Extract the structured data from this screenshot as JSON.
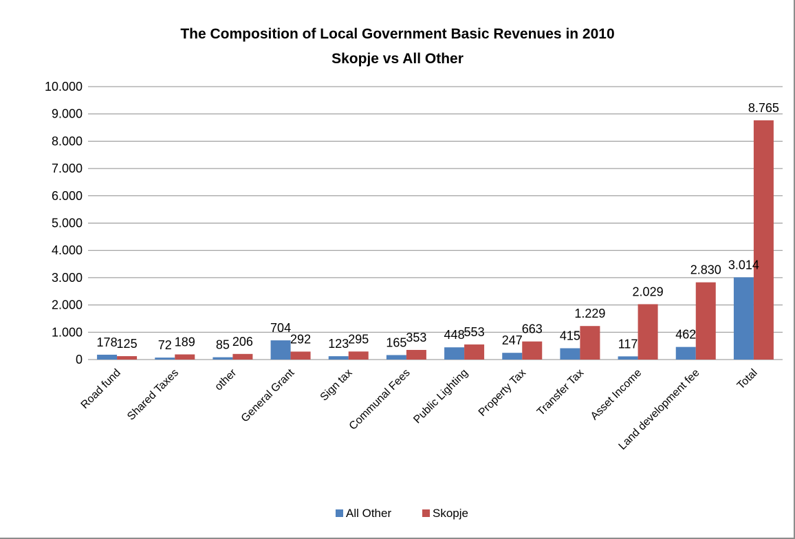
{
  "chart_data": {
    "type": "bar",
    "title": "The Composition of Local Government Basic Revenues in 2010",
    "subtitle": "Skopje vs All Other",
    "categories": [
      "Road fund",
      "Shared Taxes",
      "other",
      "General Grant",
      "Sign tax",
      "Communal Fees",
      "Public Lighting",
      "Property Tax",
      "Transfer Tax",
      "Asset Income",
      "Land development fee",
      "Total"
    ],
    "series": [
      {
        "name": "All Other",
        "color": "#4f81bd",
        "values": [
          178,
          72,
          85,
          704,
          123,
          165,
          448,
          247,
          415,
          117,
          462,
          3014
        ],
        "labels": [
          "178",
          "72",
          "85",
          "704",
          "123",
          "165",
          "448",
          "247",
          "415",
          "117",
          "462",
          "3.014"
        ]
      },
      {
        "name": "Skopje",
        "color": "#c0504d",
        "values": [
          125,
          189,
          206,
          292,
          295,
          353,
          553,
          663,
          1229,
          2029,
          2830,
          8765
        ],
        "labels": [
          "125",
          "189",
          "206",
          "292",
          "295",
          "353",
          "553",
          "663",
          "1.229",
          "2.029",
          "2.830",
          "8.765"
        ]
      }
    ],
    "ylim": [
      0,
      10000
    ],
    "yticks": [
      0,
      1000,
      2000,
      3000,
      4000,
      5000,
      6000,
      7000,
      8000,
      9000,
      10000
    ],
    "ytick_labels": [
      "0",
      "1.000",
      "2.000",
      "3.000",
      "4.000",
      "5.000",
      "6.000",
      "7.000",
      "8.000",
      "9.000",
      "10.000"
    ],
    "xlabel": "",
    "ylabel": "",
    "grid": true,
    "legend_position": "bottom"
  }
}
